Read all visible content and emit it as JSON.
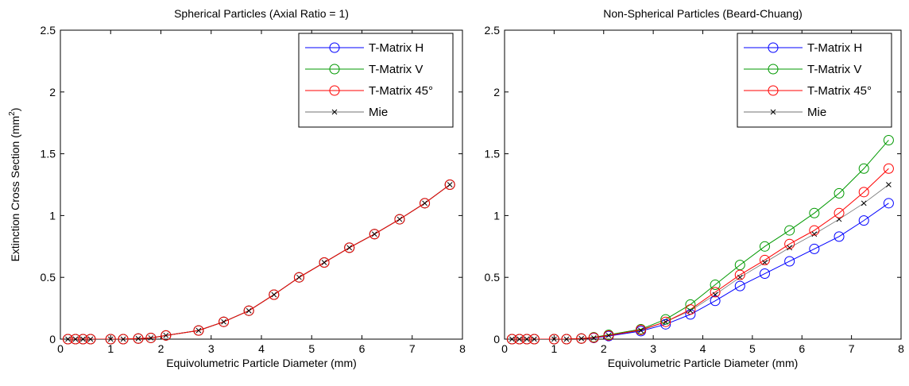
{
  "chart_data": [
    {
      "type": "line",
      "title": "Spherical Particles (Axial Ratio = 1)",
      "xlabel": "Equivolumetric Particle Diameter (mm)",
      "ylabel": "Extinction Cross Section (mm",
      "ylabel_sup": "2",
      "ylabel_close": ")",
      "xlim": [
        0,
        8
      ],
      "ylim": [
        0,
        2.5
      ],
      "xticks": [
        "0",
        "1",
        "2",
        "3",
        "4",
        "5",
        "6",
        "7",
        "8"
      ],
      "yticks": [
        "0",
        "0.5",
        "1",
        "1.5",
        "2",
        "2.5"
      ],
      "legend_position": "top-right",
      "x": [
        0.15,
        0.3,
        0.45,
        0.6,
        1.0,
        1.25,
        1.55,
        1.8,
        2.1,
        2.75,
        3.25,
        3.75,
        4.25,
        4.75,
        5.25,
        5.75,
        6.25,
        6.75,
        7.25,
        7.75
      ],
      "series": [
        {
          "name": "T-Matrix H",
          "color": "#0000ff",
          "marker": "circle",
          "values": [
            0.0,
            0.0,
            0.0,
            0.0,
            0.0,
            0.0,
            0.005,
            0.01,
            0.03,
            0.07,
            0.14,
            0.23,
            0.36,
            0.5,
            0.62,
            0.74,
            0.85,
            0.97,
            1.1,
            1.25
          ]
        },
        {
          "name": "T-Matrix V",
          "color": "#009900",
          "marker": "circle",
          "values": [
            0.0,
            0.0,
            0.0,
            0.0,
            0.0,
            0.0,
            0.005,
            0.01,
            0.03,
            0.07,
            0.14,
            0.23,
            0.36,
            0.5,
            0.62,
            0.74,
            0.85,
            0.97,
            1.1,
            1.25
          ]
        },
        {
          "name": "T-Matrix 45°",
          "color": "#ff0000",
          "marker": "circle",
          "values": [
            0.0,
            0.0,
            0.0,
            0.0,
            0.0,
            0.0,
            0.005,
            0.01,
            0.03,
            0.07,
            0.14,
            0.23,
            0.36,
            0.5,
            0.62,
            0.74,
            0.85,
            0.97,
            1.1,
            1.25
          ]
        },
        {
          "name": "Mie",
          "color": "#000000",
          "marker": "x",
          "values": [
            0.0,
            0.0,
            0.0,
            0.0,
            0.0,
            0.0,
            0.005,
            0.01,
            0.03,
            0.07,
            0.14,
            0.23,
            0.36,
            0.5,
            0.62,
            0.74,
            0.85,
            0.97,
            1.1,
            1.25
          ]
        }
      ]
    },
    {
      "type": "line",
      "title": "Non-Spherical Particles (Beard-Chuang)",
      "xlabel": "Equivolumetric Particle Diameter (mm)",
      "xlim": [
        0,
        8
      ],
      "ylim": [
        0,
        2.5
      ],
      "xticks": [
        "0",
        "1",
        "2",
        "3",
        "4",
        "5",
        "6",
        "7",
        "8"
      ],
      "yticks": [
        "0",
        "0.5",
        "1",
        "1.5",
        "2",
        "2.5"
      ],
      "legend_position": "top-right",
      "x": [
        0.15,
        0.3,
        0.45,
        0.6,
        1.0,
        1.25,
        1.55,
        1.8,
        2.1,
        2.75,
        3.25,
        3.75,
        4.25,
        4.75,
        5.25,
        5.75,
        6.25,
        6.75,
        7.25,
        7.75
      ],
      "series": [
        {
          "name": "T-Matrix H",
          "color": "#0000ff",
          "marker": "circle",
          "values": [
            0.0,
            0.0,
            0.0,
            0.0,
            0.0,
            0.0,
            0.005,
            0.01,
            0.025,
            0.065,
            0.12,
            0.2,
            0.31,
            0.43,
            0.53,
            0.63,
            0.73,
            0.83,
            0.96,
            1.1
          ]
        },
        {
          "name": "T-Matrix V",
          "color": "#009900",
          "marker": "circle",
          "values": [
            0.0,
            0.0,
            0.0,
            0.0,
            0.0,
            0.0,
            0.005,
            0.015,
            0.035,
            0.08,
            0.16,
            0.28,
            0.44,
            0.6,
            0.75,
            0.88,
            1.02,
            1.18,
            1.38,
            1.61
          ]
        },
        {
          "name": "T-Matrix 45°",
          "color": "#ff0000",
          "marker": "circle",
          "values": [
            0.0,
            0.0,
            0.0,
            0.0,
            0.0,
            0.0,
            0.005,
            0.012,
            0.03,
            0.075,
            0.14,
            0.24,
            0.38,
            0.52,
            0.64,
            0.77,
            0.88,
            1.02,
            1.19,
            1.38
          ]
        },
        {
          "name": "Mie",
          "color": "#000000",
          "marker": "x",
          "values": [
            0.0,
            0.0,
            0.0,
            0.0,
            0.0,
            0.0,
            0.005,
            0.01,
            0.03,
            0.07,
            0.14,
            0.23,
            0.36,
            0.5,
            0.62,
            0.74,
            0.85,
            0.97,
            1.1,
            1.25
          ]
        }
      ]
    }
  ]
}
